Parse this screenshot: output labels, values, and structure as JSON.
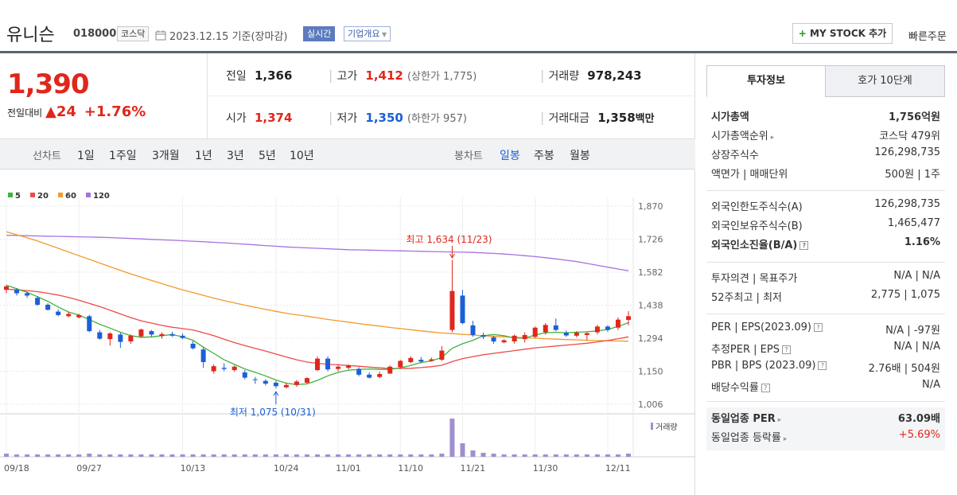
{
  "header": {
    "name": "유니슨",
    "code": "018000",
    "market_tag": "코스닥",
    "date": "2023.12.15 기준(장마감)",
    "realtime": "실시간",
    "company_info": "기업개요",
    "my_stock": "MY STOCK 추가",
    "quick_order": "빠른주문"
  },
  "price": {
    "current": "1,390",
    "change_label": "전일대비",
    "change_amount": "24",
    "change_pct": "+1.76%",
    "prev_close_label": "전일",
    "prev_close": "1,366",
    "high_label": "고가",
    "high": "1,412",
    "upper_limit": "(상한가 1,775)",
    "volume_label": "거래량",
    "volume": "978,243",
    "open_label": "시가",
    "open": "1,374",
    "low_label": "저가",
    "low": "1,350",
    "lower_limit": "(하한가 957)",
    "value_label": "거래대금",
    "value": "1,358",
    "value_unit": "백만"
  },
  "periods": {
    "line_label": "선차트",
    "line_items": [
      "1일",
      "1주일",
      "3개월",
      "1년",
      "3년",
      "5년",
      "10년"
    ],
    "candle_label": "봉차트",
    "candle_items": [
      "일봉",
      "주봉",
      "월봉"
    ],
    "candle_active": "일봉"
  },
  "colors": {
    "up": "#e0271c",
    "down": "#1c5fd6",
    "ma5": "#3fb33a",
    "ma20": "#ee4b4b",
    "ma60": "#f39a2a",
    "ma120": "#a672e0"
  },
  "chart_data": {
    "type": "candlestick",
    "legend": [
      "5",
      "20",
      "60",
      "120"
    ],
    "yticks": [
      1870,
      1726,
      1582,
      1438,
      1294,
      1150,
      1006
    ],
    "ylim": [
      1006,
      1870
    ],
    "xticks": [
      "09/18",
      "09/27",
      "10/13",
      "10/24",
      "11/01",
      "11/10",
      "11/21",
      "11/30",
      "12/11"
    ],
    "max_label": "최고 1,634 (11/23)",
    "min_label": "최저 1,075 (10/31)",
    "volume_label": "거래량",
    "candles": [
      {
        "o": 1505,
        "h": 1525,
        "l": 1490,
        "c": 1520
      },
      {
        "o": 1505,
        "h": 1512,
        "l": 1480,
        "c": 1490
      },
      {
        "o": 1490,
        "h": 1498,
        "l": 1470,
        "c": 1480
      },
      {
        "o": 1470,
        "h": 1478,
        "l": 1435,
        "c": 1440
      },
      {
        "o": 1440,
        "h": 1446,
        "l": 1415,
        "c": 1418
      },
      {
        "o": 1410,
        "h": 1420,
        "l": 1390,
        "c": 1395
      },
      {
        "o": 1390,
        "h": 1410,
        "l": 1385,
        "c": 1400
      },
      {
        "o": 1385,
        "h": 1400,
        "l": 1380,
        "c": 1395
      },
      {
        "o": 1390,
        "h": 1396,
        "l": 1320,
        "c": 1325
      },
      {
        "o": 1320,
        "h": 1330,
        "l": 1288,
        "c": 1292
      },
      {
        "o": 1290,
        "h": 1320,
        "l": 1262,
        "c": 1315
      },
      {
        "o": 1310,
        "h": 1318,
        "l": 1252,
        "c": 1278
      },
      {
        "o": 1280,
        "h": 1310,
        "l": 1270,
        "c": 1305
      },
      {
        "o": 1302,
        "h": 1336,
        "l": 1296,
        "c": 1332
      },
      {
        "o": 1325,
        "h": 1330,
        "l": 1300,
        "c": 1310
      },
      {
        "o": 1304,
        "h": 1320,
        "l": 1292,
        "c": 1312
      },
      {
        "o": 1312,
        "h": 1322,
        "l": 1300,
        "c": 1305
      },
      {
        "o": 1305,
        "h": 1315,
        "l": 1290,
        "c": 1295
      },
      {
        "o": 1270,
        "h": 1282,
        "l": 1245,
        "c": 1250
      },
      {
        "o": 1245,
        "h": 1255,
        "l": 1165,
        "c": 1190
      },
      {
        "o": 1150,
        "h": 1180,
        "l": 1140,
        "c": 1172
      },
      {
        "o": 1165,
        "h": 1185,
        "l": 1150,
        "c": 1160
      },
      {
        "o": 1155,
        "h": 1175,
        "l": 1148,
        "c": 1170
      },
      {
        "o": 1145,
        "h": 1155,
        "l": 1115,
        "c": 1122
      },
      {
        "o": 1115,
        "h": 1125,
        "l": 1095,
        "c": 1112
      },
      {
        "o": 1108,
        "h": 1115,
        "l": 1088,
        "c": 1096
      },
      {
        "o": 1100,
        "h": 1108,
        "l": 1075,
        "c": 1085
      },
      {
        "o": 1080,
        "h": 1100,
        "l": 1075,
        "c": 1090
      },
      {
        "o": 1090,
        "h": 1112,
        "l": 1082,
        "c": 1105
      },
      {
        "o": 1100,
        "h": 1125,
        "l": 1095,
        "c": 1120
      },
      {
        "o": 1155,
        "h": 1215,
        "l": 1150,
        "c": 1205
      },
      {
        "o": 1205,
        "h": 1215,
        "l": 1150,
        "c": 1158
      },
      {
        "o": 1160,
        "h": 1180,
        "l": 1150,
        "c": 1170
      },
      {
        "o": 1165,
        "h": 1180,
        "l": 1158,
        "c": 1175
      },
      {
        "o": 1160,
        "h": 1168,
        "l": 1128,
        "c": 1135
      },
      {
        "o": 1135,
        "h": 1145,
        "l": 1118,
        "c": 1122
      },
      {
        "o": 1125,
        "h": 1148,
        "l": 1120,
        "c": 1138
      },
      {
        "o": 1140,
        "h": 1175,
        "l": 1138,
        "c": 1170
      },
      {
        "o": 1168,
        "h": 1200,
        "l": 1160,
        "c": 1195
      },
      {
        "o": 1190,
        "h": 1215,
        "l": 1185,
        "c": 1208
      },
      {
        "o": 1200,
        "h": 1212,
        "l": 1185,
        "c": 1192
      },
      {
        "o": 1195,
        "h": 1210,
        "l": 1192,
        "c": 1202
      },
      {
        "o": 1200,
        "h": 1260,
        "l": 1195,
        "c": 1240
      },
      {
        "o": 1330,
        "h": 1634,
        "l": 1320,
        "c": 1500
      },
      {
        "o": 1480,
        "h": 1505,
        "l": 1355,
        "c": 1360
      },
      {
        "o": 1350,
        "h": 1370,
        "l": 1300,
        "c": 1308
      },
      {
        "o": 1308,
        "h": 1318,
        "l": 1290,
        "c": 1300
      },
      {
        "o": 1298,
        "h": 1305,
        "l": 1270,
        "c": 1280
      },
      {
        "o": 1276,
        "h": 1290,
        "l": 1272,
        "c": 1285
      },
      {
        "o": 1280,
        "h": 1310,
        "l": 1270,
        "c": 1305
      },
      {
        "o": 1290,
        "h": 1320,
        "l": 1275,
        "c": 1308
      },
      {
        "o": 1300,
        "h": 1345,
        "l": 1295,
        "c": 1340
      },
      {
        "o": 1320,
        "h": 1360,
        "l": 1310,
        "c": 1352
      },
      {
        "o": 1350,
        "h": 1380,
        "l": 1325,
        "c": 1330
      },
      {
        "o": 1318,
        "h": 1328,
        "l": 1300,
        "c": 1306
      },
      {
        "o": 1305,
        "h": 1325,
        "l": 1298,
        "c": 1318
      },
      {
        "o": 1308,
        "h": 1320,
        "l": 1285,
        "c": 1316
      },
      {
        "o": 1320,
        "h": 1352,
        "l": 1310,
        "c": 1345
      },
      {
        "o": 1345,
        "h": 1350,
        "l": 1322,
        "c": 1330
      },
      {
        "o": 1340,
        "h": 1385,
        "l": 1330,
        "c": 1375
      },
      {
        "o": 1374,
        "h": 1412,
        "l": 1350,
        "c": 1390
      }
    ],
    "ma5": [
      1525,
      1510,
      1494,
      1475,
      1455,
      1430,
      1408,
      1395,
      1375,
      1355,
      1338,
      1320,
      1305,
      1298,
      1300,
      1305,
      1310,
      1300,
      1285,
      1255,
      1228,
      1200,
      1180,
      1160,
      1145,
      1130,
      1112,
      1098,
      1092,
      1095,
      1110,
      1130,
      1145,
      1155,
      1158,
      1160,
      1158,
      1158,
      1165,
      1175,
      1188,
      1195,
      1210,
      1250,
      1270,
      1285,
      1305,
      1310,
      1305,
      1295,
      1295,
      1308,
      1318,
      1320,
      1318,
      1320,
      1322,
      1326,
      1332,
      1345,
      1362
    ],
    "ma20": [
      1508,
      1505,
      1502,
      1497,
      1490,
      1482,
      1472,
      1460,
      1446,
      1432,
      1416,
      1400,
      1384,
      1370,
      1360,
      1350,
      1342,
      1336,
      1330,
      1318,
      1305,
      1290,
      1275,
      1262,
      1250,
      1238,
      1225,
      1212,
      1200,
      1190,
      1185,
      1180,
      1178,
      1175,
      1172,
      1168,
      1165,
      1162,
      1162,
      1163,
      1166,
      1170,
      1176,
      1192,
      1205,
      1214,
      1222,
      1228,
      1234,
      1240,
      1246,
      1252,
      1256,
      1260,
      1264,
      1268,
      1272,
      1278,
      1284,
      1292,
      1300
    ],
    "ma60": [
      1758,
      1745,
      1732,
      1718,
      1702,
      1686,
      1670,
      1654,
      1638,
      1622,
      1606,
      1590,
      1574,
      1560,
      1546,
      1532,
      1518,
      1505,
      1493,
      1481,
      1469,
      1458,
      1448,
      1438,
      1429,
      1420,
      1411,
      1403,
      1396,
      1390,
      1383,
      1376,
      1370,
      1364,
      1358,
      1352,
      1347,
      1341,
      1336,
      1331,
      1326,
      1321,
      1317,
      1314,
      1311,
      1308,
      1305,
      1302,
      1300,
      1298,
      1296,
      1294,
      1292,
      1290,
      1288,
      1287,
      1285,
      1284,
      1283,
      1282,
      1281
    ],
    "ma120": [
      1743,
      1742,
      1741,
      1740,
      1739,
      1738,
      1737,
      1736,
      1735,
      1734,
      1733,
      1731,
      1729,
      1727,
      1725,
      1723,
      1721,
      1719,
      1717,
      1715,
      1712,
      1710,
      1707,
      1704,
      1701,
      1698,
      1695,
      1692,
      1690,
      1688,
      1686,
      1684,
      1682,
      1680,
      1679,
      1678,
      1677,
      1676,
      1675,
      1674,
      1673,
      1672,
      1671,
      1670,
      1669,
      1668,
      1666,
      1664,
      1661,
      1658,
      1654,
      1650,
      1645,
      1640,
      1634,
      1628,
      1620,
      1612,
      1604,
      1596,
      1588
    ],
    "volumes": [
      4,
      3,
      3,
      3,
      3,
      3,
      3,
      3,
      4,
      3,
      3,
      3,
      3,
      3,
      3,
      3,
      3,
      3,
      3,
      3,
      3,
      3,
      3,
      3,
      3,
      3,
      3,
      3,
      3,
      3,
      3,
      3,
      3,
      3,
      3,
      3,
      3,
      3,
      3,
      3,
      3,
      3,
      4,
      48,
      17,
      8,
      5,
      4,
      3,
      3,
      3,
      3,
      3,
      3,
      3,
      3,
      3,
      3,
      3,
      3,
      4
    ]
  },
  "side": {
    "tab1": "투자정보",
    "tab2": "호가 10단계",
    "rows1": [
      {
        "k": "시가총액",
        "v": "1,756억원",
        "bold": true
      },
      {
        "k": "시가총액순위",
        "v": "코스닥 479위",
        "arrow": true
      },
      {
        "k": "상장주식수",
        "v": "126,298,735"
      },
      {
        "k": "액면가 | 매매단위",
        "v": "500원 | 1주"
      }
    ],
    "rows2": [
      {
        "k": "외국인한도주식수(A)",
        "v": "126,298,735"
      },
      {
        "k": "외국인보유주식수(B)",
        "v": "1,465,477"
      },
      {
        "k": "외국인소진율(B/A)",
        "v": "1.16%",
        "bold": true,
        "q": true
      }
    ],
    "rows3": [
      {
        "k": "투자의견 | 목표주가",
        "v": "N/A | N/A"
      },
      {
        "k": "52주최고 | 최저",
        "v": "2,775 | 1,075"
      }
    ],
    "rows4": [
      {
        "k": "PER | EPS(2023.09)",
        "v": "N/A | -97원",
        "q": true
      },
      {
        "k": "추정PER | EPS",
        "v": "N/A | N/A",
        "q": true
      },
      {
        "k": "PBR | BPS (2023.09)",
        "v": "2.76배 | 504원",
        "q": true
      },
      {
        "k": "배당수익률",
        "v": "N/A",
        "q": true
      }
    ],
    "rows5": [
      {
        "k": "동일업종 PER",
        "v": "63.09배",
        "bold": true,
        "arrow": true
      },
      {
        "k": "동일업종 등락률",
        "v": "+5.69%",
        "red": true,
        "arrow": true
      }
    ]
  }
}
